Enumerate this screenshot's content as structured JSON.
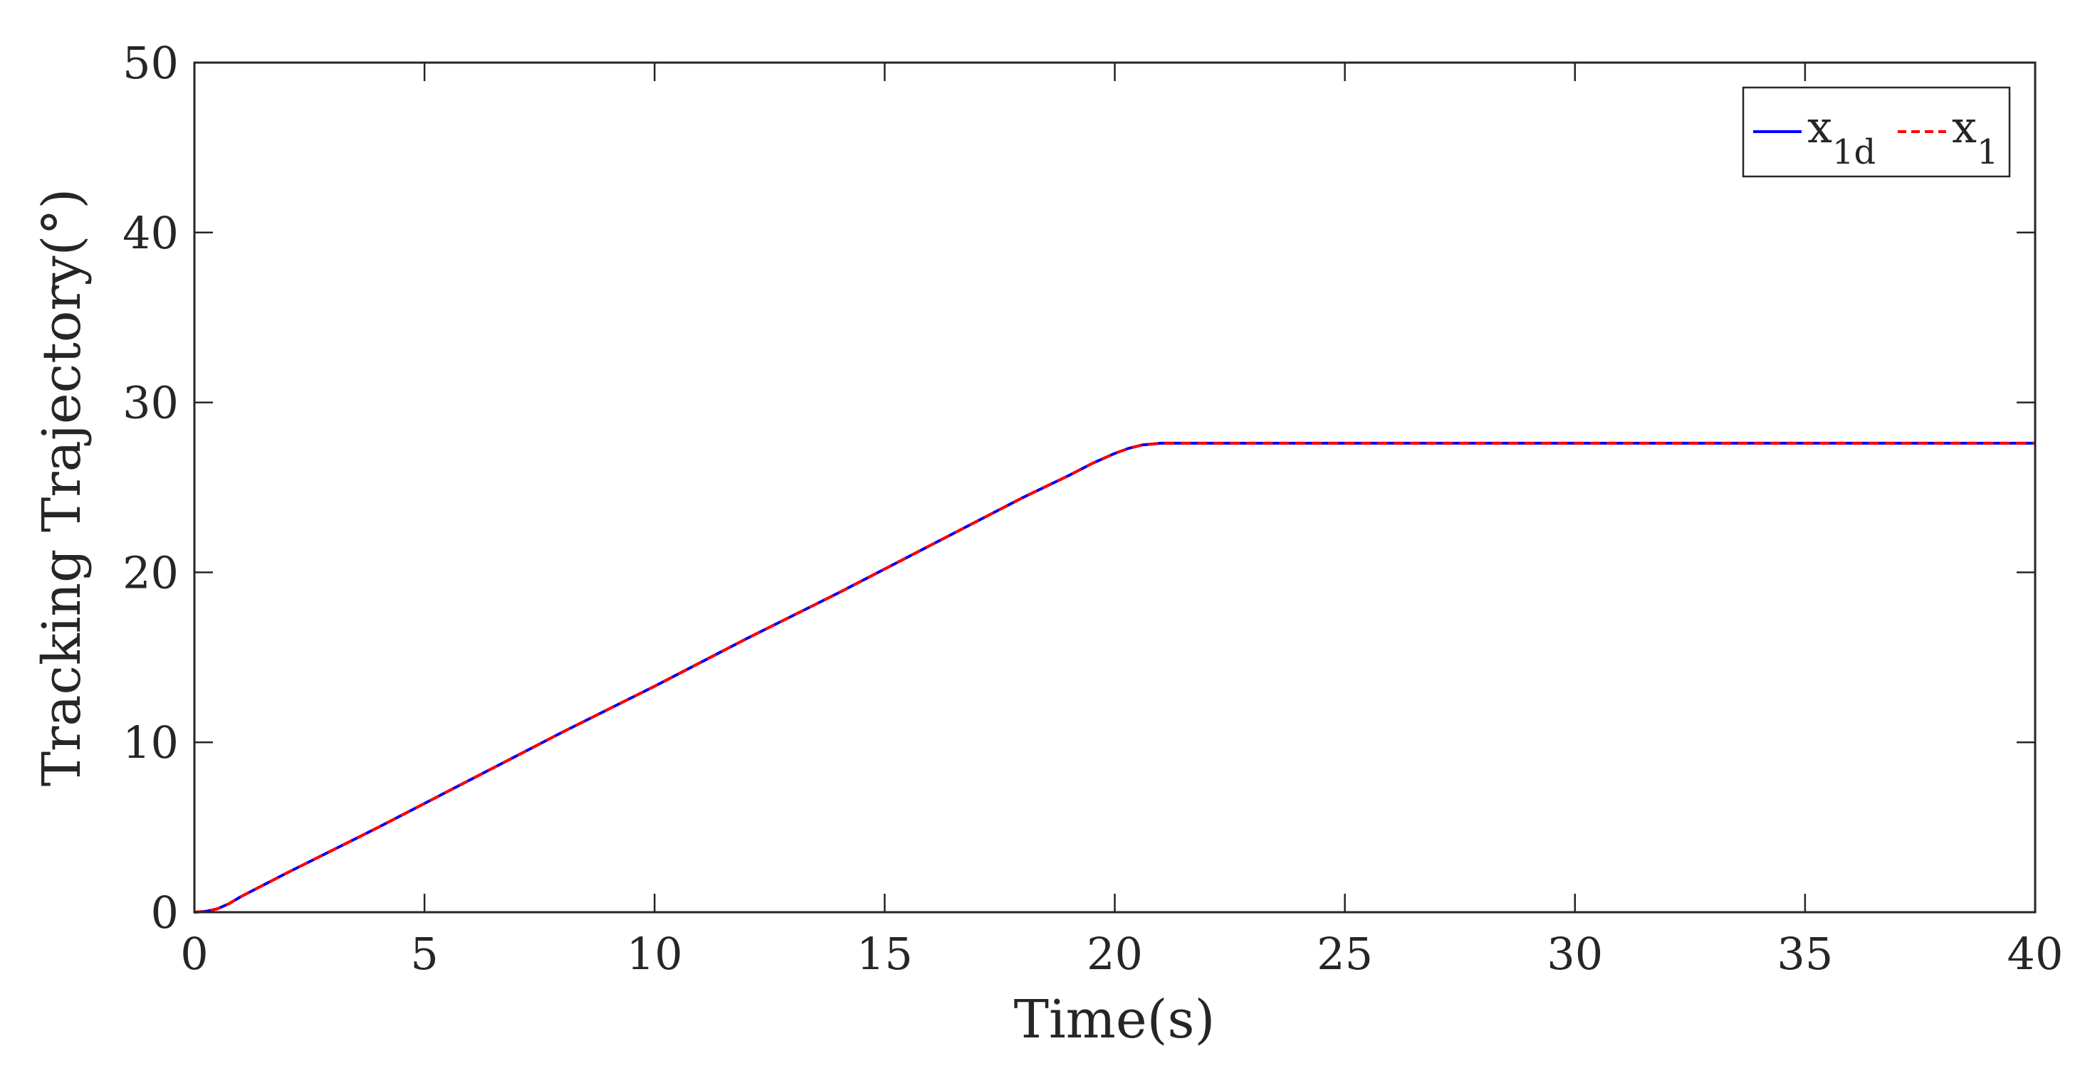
{
  "chart_data": {
    "type": "line",
    "title": "",
    "xlabel": "Time(s)",
    "ylabel": "Tracking Trajectory(°)",
    "xlim": [
      0,
      40
    ],
    "ylim": [
      0,
      50
    ],
    "xticks": [
      0,
      5,
      10,
      15,
      20,
      25,
      30,
      35,
      40
    ],
    "yticks": [
      0,
      10,
      20,
      30,
      40,
      50
    ],
    "xtick_labels": [
      "0",
      "5",
      "10",
      "15",
      "20",
      "25",
      "30",
      "35",
      "40"
    ],
    "ytick_labels": [
      "0",
      "10",
      "20",
      "30",
      "40",
      "50"
    ],
    "grid": false,
    "legend_position": "top-right",
    "series": [
      {
        "legend_base": "x",
        "legend_sub": "1d",
        "color": "#0000ff",
        "line_style": "solid",
        "x": [
          0,
          0.25,
          0.5,
          0.75,
          1.0,
          1.5,
          2,
          4,
          6,
          8,
          10,
          12,
          14,
          16,
          18,
          19,
          19.5,
          20,
          20.3,
          20.6,
          20.8,
          21,
          25,
          30,
          35,
          40
        ],
        "y": [
          0,
          0.05,
          0.2,
          0.5,
          0.9,
          1.6,
          2.3,
          5.0,
          7.8,
          10.6,
          13.3,
          16.1,
          18.8,
          21.6,
          24.4,
          25.7,
          26.4,
          27.0,
          27.3,
          27.5,
          27.55,
          27.6,
          27.6,
          27.6,
          27.6,
          27.6
        ]
      },
      {
        "legend_base": "x",
        "legend_sub": "1",
        "color": "#ff0000",
        "line_style": "dashed",
        "x": [
          0,
          0.25,
          0.5,
          0.75,
          1.0,
          1.5,
          2,
          4,
          6,
          8,
          10,
          12,
          14,
          16,
          18,
          19,
          19.5,
          20,
          20.3,
          20.6,
          20.8,
          21,
          25,
          30,
          35,
          40
        ],
        "y": [
          0,
          0.05,
          0.2,
          0.5,
          0.9,
          1.6,
          2.3,
          5.0,
          7.8,
          10.6,
          13.3,
          16.1,
          18.8,
          21.6,
          24.4,
          25.7,
          26.4,
          27.0,
          27.3,
          27.5,
          27.55,
          27.6,
          27.6,
          27.6,
          27.6,
          27.6
        ]
      }
    ]
  }
}
